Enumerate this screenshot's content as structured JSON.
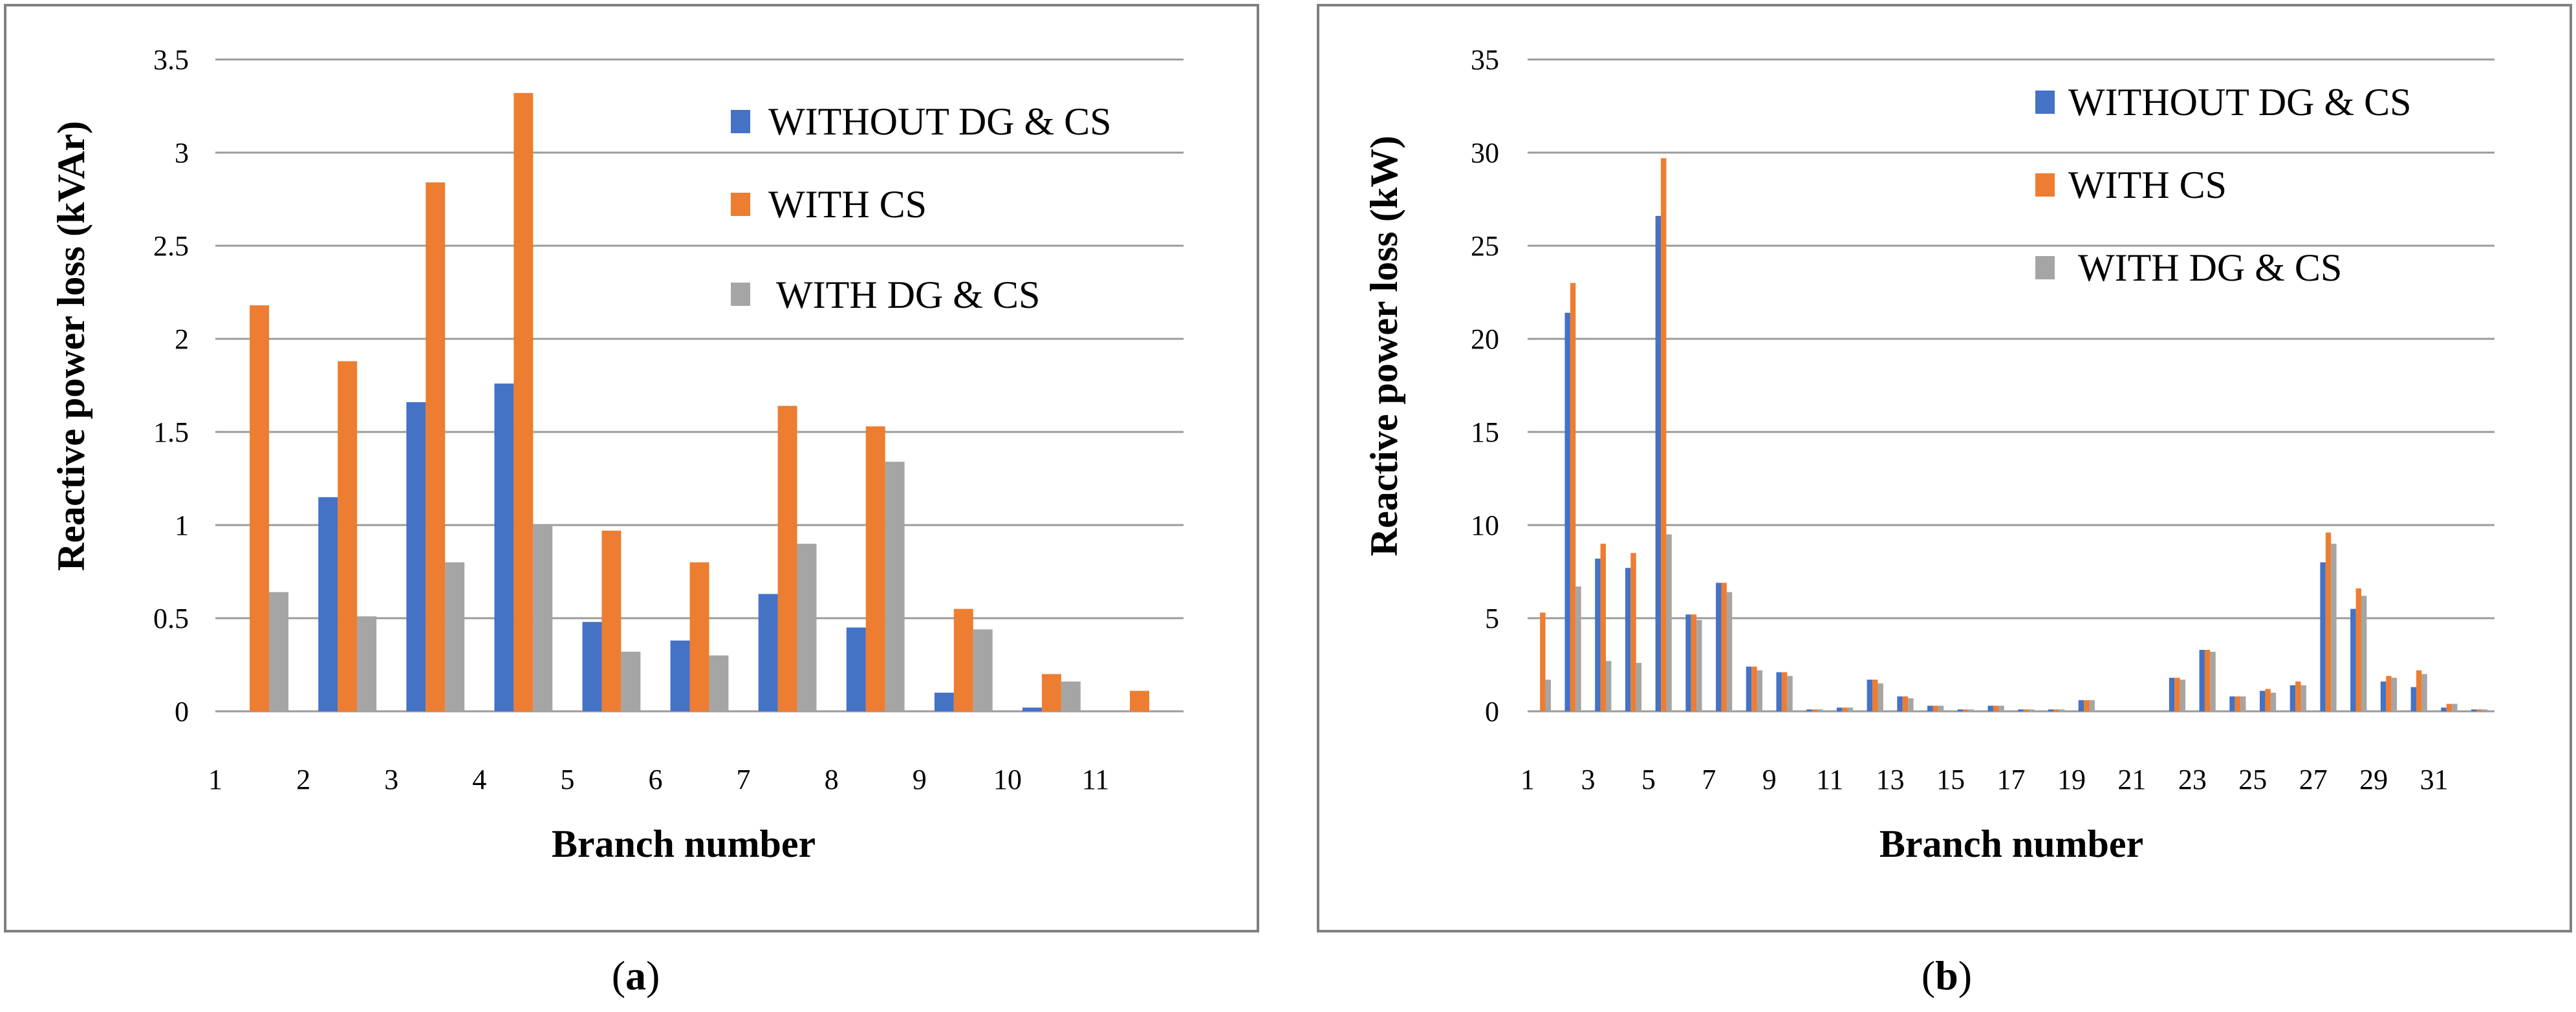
{
  "colors": {
    "s1": "#4472C4",
    "s2": "#ED7D31",
    "s3": "#A5A5A5",
    "grid": "#9b9b9b",
    "frame": "#7f7f7f"
  },
  "chart_data": [
    {
      "type": "bar",
      "panel_caption": {
        "open": "(",
        "letter": "a",
        "close": ")"
      },
      "ylabel": "Reactive power loss (kVAr)",
      "xlabel": "Branch number",
      "ylim": [
        0,
        3.5
      ],
      "yticks": [
        "0",
        "0.5",
        "1",
        "1.5",
        "2",
        "2.5",
        "3",
        "3.5"
      ],
      "categories": [
        "1",
        "2",
        "3",
        "4",
        "5",
        "6",
        "7",
        "8",
        "9",
        "10",
        "11"
      ],
      "series": [
        {
          "name": "WITHOUT DG & CS",
          "values": [
            0,
            1.15,
            1.66,
            1.76,
            0.48,
            0.38,
            0.63,
            0.45,
            0.1,
            0.02,
            0
          ]
        },
        {
          "name": "WITH CS",
          "values": [
            2.18,
            1.88,
            2.84,
            3.32,
            0.97,
            0.8,
            1.64,
            1.53,
            0.55,
            0.2,
            0.11
          ]
        },
        {
          "name": "WITH DG & CS",
          "values": [
            0.64,
            0.51,
            0.8,
            1.0,
            0.32,
            0.3,
            0.9,
            1.34,
            0.44,
            0.16,
            0
          ]
        }
      ]
    },
    {
      "type": "bar",
      "panel_caption": {
        "open": "(",
        "letter": "b",
        "close": ")"
      },
      "ylabel": "Reactive power loss (kW)",
      "xlabel": "Branch number",
      "ylim": [
        0,
        35
      ],
      "yticks": [
        "0",
        "5",
        "10",
        "15",
        "20",
        "25",
        "30",
        "35"
      ],
      "categories": [
        "1",
        "2",
        "3",
        "4",
        "5",
        "6",
        "7",
        "8",
        "9",
        "10",
        "11",
        "12",
        "13",
        "14",
        "15",
        "16",
        "17",
        "18",
        "19",
        "20",
        "21",
        "22",
        "23",
        "24",
        "25",
        "26",
        "27",
        "28",
        "29",
        "30",
        "31",
        "32"
      ],
      "xtick_labels": [
        "1",
        "",
        "3",
        "",
        "5",
        "",
        "7",
        "",
        "9",
        "",
        "11",
        "",
        "13",
        "",
        "15",
        "",
        "17",
        "",
        "19",
        "",
        "21",
        "",
        "23",
        "",
        "25",
        "",
        "27",
        "",
        "29",
        "",
        "31",
        ""
      ],
      "series": [
        {
          "name": "WITHOUT DG & CS",
          "values": [
            0,
            21.4,
            8.2,
            7.7,
            26.6,
            5.2,
            6.9,
            2.4,
            2.1,
            0.1,
            0.2,
            1.7,
            0.8,
            0.3,
            0.1,
            0.3,
            0.1,
            0.1,
            0.6,
            0,
            0,
            1.8,
            3.3,
            0.8,
            1.1,
            1.4,
            8.0,
            5.5,
            1.6,
            1.3,
            0.2,
            0.1
          ]
        },
        {
          "name": "WITH CS",
          "values": [
            5.3,
            23.0,
            9.0,
            8.5,
            29.7,
            5.2,
            6.9,
            2.4,
            2.1,
            0.1,
            0.2,
            1.7,
            0.8,
            0.3,
            0.1,
            0.3,
            0.1,
            0.1,
            0.6,
            0,
            0,
            1.8,
            3.3,
            0.8,
            1.2,
            1.6,
            9.6,
            6.6,
            1.9,
            2.2,
            0.4,
            0.1
          ]
        },
        {
          "name": "WITH DG & CS",
          "values": [
            1.7,
            6.7,
            2.7,
            2.6,
            9.5,
            4.9,
            6.4,
            2.2,
            1.9,
            0.1,
            0.2,
            1.5,
            0.7,
            0.3,
            0.1,
            0.3,
            0.1,
            0.1,
            0.6,
            0,
            0,
            1.7,
            3.2,
            0.8,
            1.0,
            1.4,
            9.0,
            6.2,
            1.8,
            2.0,
            0.4,
            0.1
          ]
        }
      ]
    }
  ]
}
